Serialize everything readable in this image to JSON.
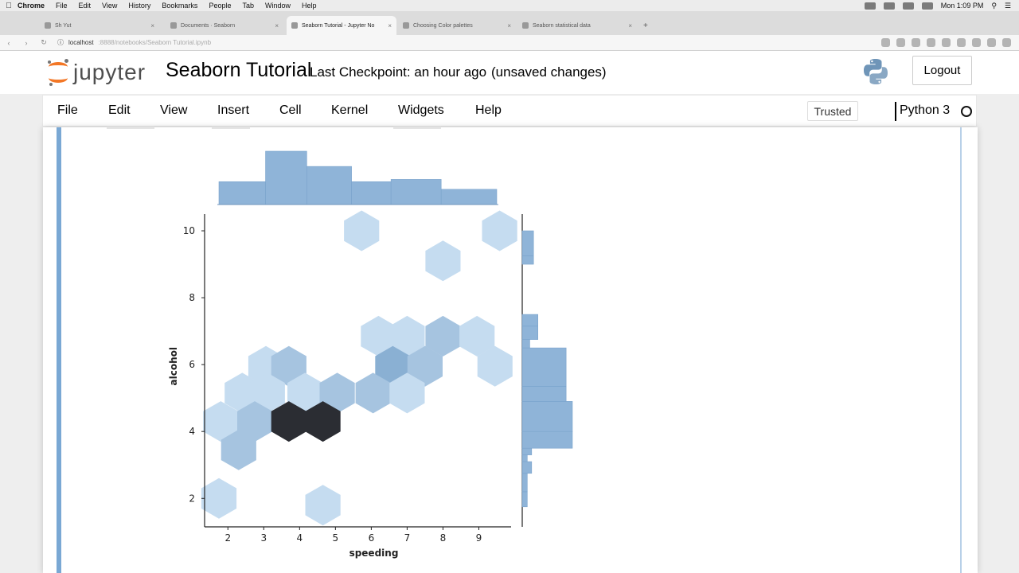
{
  "macos": {
    "app": "Chrome",
    "menus": [
      "File",
      "Edit",
      "View",
      "History",
      "Bookmarks",
      "People",
      "Tab",
      "Window",
      "Help"
    ],
    "clock": "Mon 1:09 PM"
  },
  "browser": {
    "tabs": [
      {
        "title": "Sh Yut",
        "active": false
      },
      {
        "title": "Documents · Seaborn",
        "active": false
      },
      {
        "title": "Seaborn Tutorial - Jupyter No",
        "active": true
      },
      {
        "title": "Choosing Color palettes",
        "active": false
      },
      {
        "title": "Seaborn statistical data",
        "active": false
      }
    ],
    "url_host": "localhost",
    "url_rest": ":8888/notebooks/Seaborn Tutorial.ipynb"
  },
  "jupyter": {
    "logo_text": "jupyter",
    "notebook_title": "Seaborn Tutorial",
    "checkpoint": "Last Checkpoint: an hour ago",
    "status": "(unsaved changes)",
    "logout": "Logout",
    "menu": [
      "File",
      "Edit",
      "View",
      "Insert",
      "Cell",
      "Kernel",
      "Widgets",
      "Help"
    ],
    "trusted": "Trusted",
    "kernel": "Python 3"
  },
  "chart_data": {
    "type": "hexbin",
    "title": "",
    "xlabel": "speeding",
    "ylabel": "alcohol",
    "xlim": [
      1.35,
      9.9
    ],
    "ylim": [
      1.15,
      10.5
    ],
    "xticks": [
      2,
      3,
      4,
      5,
      6,
      7,
      8,
      9
    ],
    "yticks": [
      2,
      4,
      6,
      8,
      10
    ],
    "colors": {
      "low": "#c5dcf0",
      "mid": "#a6c4e0",
      "high": "#8ab0d3",
      "peak": "#2b2d33",
      "marginal": "#8fb4d8"
    },
    "hexbins": [
      {
        "x": 5.73,
        "y": 10.0,
        "count": 1
      },
      {
        "x": 9.58,
        "y": 10.0,
        "count": 1
      },
      {
        "x": 8.0,
        "y": 9.1,
        "count": 1
      },
      {
        "x": 6.2,
        "y": 6.85,
        "count": 1
      },
      {
        "x": 7.0,
        "y": 6.85,
        "count": 1
      },
      {
        "x": 8.0,
        "y": 6.85,
        "count": 2
      },
      {
        "x": 8.95,
        "y": 6.85,
        "count": 1
      },
      {
        "x": 3.06,
        "y": 5.95,
        "count": 1
      },
      {
        "x": 3.7,
        "y": 5.95,
        "count": 2
      },
      {
        "x": 6.6,
        "y": 5.95,
        "count": 3
      },
      {
        "x": 7.5,
        "y": 5.95,
        "count": 2
      },
      {
        "x": 9.45,
        "y": 5.95,
        "count": 1
      },
      {
        "x": 2.4,
        "y": 5.15,
        "count": 1
      },
      {
        "x": 3.1,
        "y": 5.15,
        "count": 1
      },
      {
        "x": 4.15,
        "y": 5.15,
        "count": 1
      },
      {
        "x": 5.05,
        "y": 5.15,
        "count": 2
      },
      {
        "x": 6.05,
        "y": 5.15,
        "count": 2
      },
      {
        "x": 7.0,
        "y": 5.15,
        "count": 1
      },
      {
        "x": 1.8,
        "y": 4.3,
        "count": 1
      },
      {
        "x": 2.75,
        "y": 4.3,
        "count": 2
      },
      {
        "x": 3.7,
        "y": 4.3,
        "count": 6
      },
      {
        "x": 4.65,
        "y": 4.3,
        "count": 6
      },
      {
        "x": 2.3,
        "y": 3.45,
        "count": 2
      },
      {
        "x": 1.75,
        "y": 2.0,
        "count": 1
      },
      {
        "x": 4.65,
        "y": 1.8,
        "count": 1
      }
    ],
    "marginal_x": {
      "edges": [
        1.75,
        3.05,
        4.2,
        5.45,
        6.55,
        7.95,
        9.5
      ],
      "counts": [
        3,
        7,
        5,
        3,
        3.3,
        2
      ]
    },
    "marginal_y": {
      "bins": [
        [
          1.75,
          2.2,
          0.8
        ],
        [
          2.2,
          2.75,
          0.8
        ],
        [
          2.75,
          3.1,
          1.5
        ],
        [
          3.1,
          3.3,
          0.8
        ],
        [
          3.3,
          3.5,
          1.5
        ],
        [
          3.5,
          4.0,
          8
        ],
        [
          4.0,
          4.9,
          8
        ],
        [
          4.9,
          5.35,
          7
        ],
        [
          5.35,
          6.5,
          7
        ],
        [
          6.5,
          6.75,
          1.2
        ],
        [
          6.75,
          7.15,
          2.5
        ],
        [
          7.15,
          7.5,
          2.5
        ],
        [
          9.0,
          9.25,
          1.8
        ],
        [
          9.25,
          10.0,
          1.8
        ]
      ]
    }
  }
}
